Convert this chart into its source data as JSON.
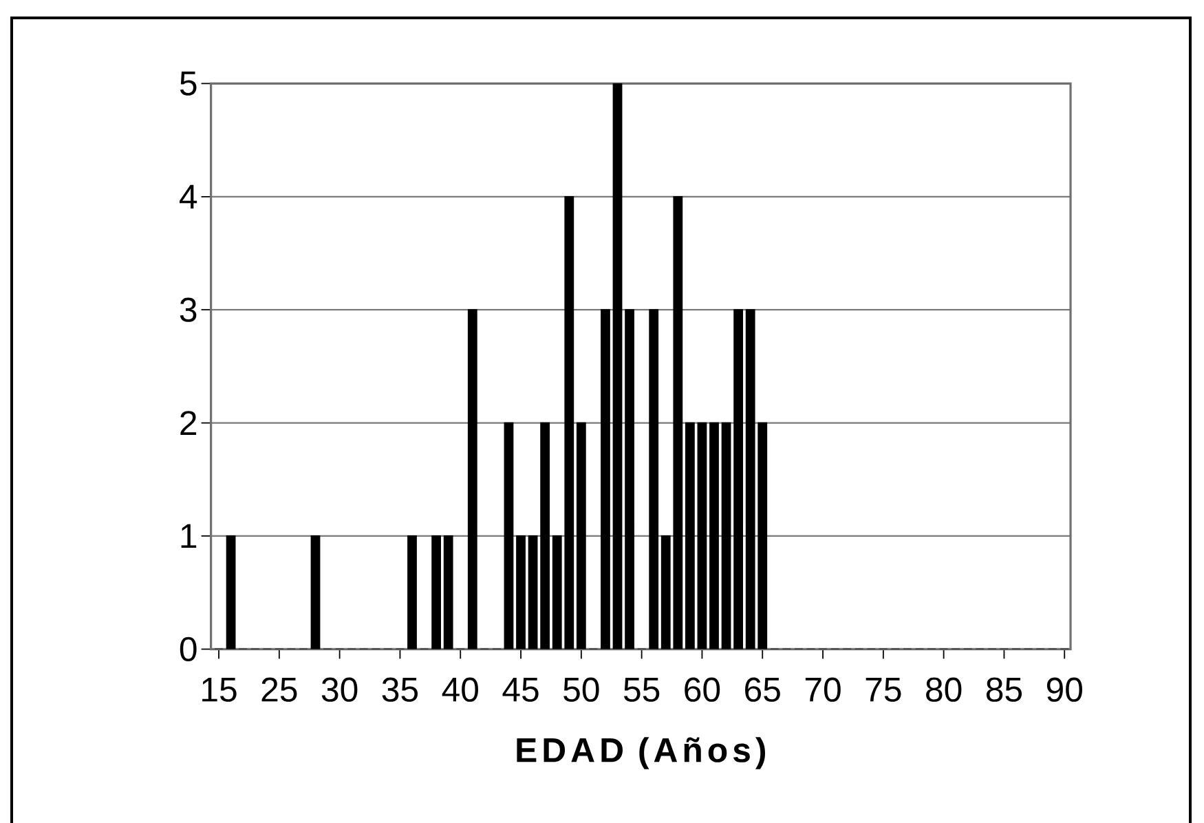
{
  "chart_data": {
    "type": "bar",
    "xlabel": "EDAD (Años)",
    "categories": [
      "15",
      null,
      null,
      null,
      null,
      "25",
      null,
      null,
      null,
      null,
      "30",
      null,
      null,
      null,
      null,
      "35",
      null,
      null,
      null,
      null,
      "40",
      null,
      null,
      null,
      null,
      "45",
      null,
      null,
      null,
      null,
      "50",
      null,
      null,
      null,
      null,
      "55",
      null,
      null,
      null,
      null,
      "60",
      null,
      null,
      null,
      null,
      "65",
      null,
      null,
      null,
      null,
      "70",
      null,
      null,
      null,
      null,
      "75",
      null,
      null,
      null,
      null,
      "80",
      null,
      null,
      null,
      null,
      "85",
      null,
      null,
      null,
      null,
      "90"
    ],
    "values": [
      0,
      1,
      0,
      0,
      0,
      0,
      0,
      0,
      1,
      0,
      0,
      0,
      0,
      0,
      0,
      0,
      1,
      0,
      1,
      1,
      0,
      3,
      0,
      0,
      2,
      1,
      1,
      2,
      1,
      4,
      2,
      0,
      3,
      5,
      3,
      0,
      3,
      1,
      4,
      2,
      2,
      2,
      2,
      3,
      3,
      2,
      0,
      0,
      0,
      0,
      0,
      0,
      0,
      0,
      0,
      0,
      0,
      0,
      0,
      0,
      0,
      0,
      0,
      0,
      0,
      0,
      0,
      0,
      0,
      0,
      0
    ],
    "color": "#000000",
    "ylim": [
      0,
      5
    ],
    "yticks": [
      0,
      1,
      2,
      3,
      4,
      5
    ],
    "grid": "y"
  }
}
